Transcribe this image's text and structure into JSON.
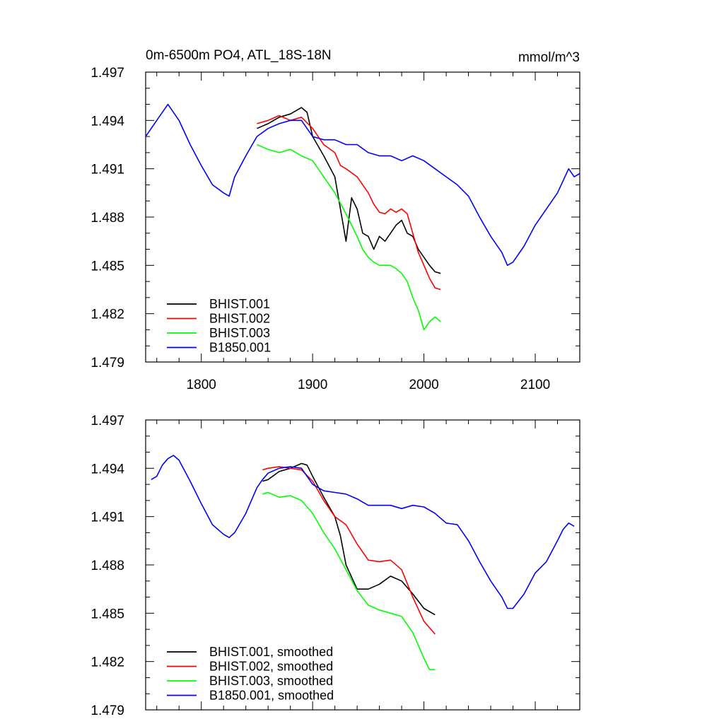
{
  "figure": {
    "title": "0m-6500m PO4, ATL_18S-18N",
    "units": "mmol/m^3"
  },
  "chart_data": [
    {
      "type": "line",
      "title": "0m-6500m PO4, ATL_18S-18N",
      "units": "mmol/m^3",
      "xlim": [
        1750,
        2140
      ],
      "ylim": [
        1.479,
        1.497
      ],
      "xticks": [
        1800,
        1900,
        2000,
        2100
      ],
      "xtick_labels": [
        "1800",
        "1900",
        "2000",
        "2100"
      ],
      "yticks": [
        1.479,
        1.482,
        1.485,
        1.488,
        1.491,
        1.494,
        1.497
      ],
      "ytick_labels": [
        "1.479",
        "1.482",
        "1.485",
        "1.488",
        "1.491",
        "1.494",
        "1.497"
      ],
      "grid": false,
      "legend_placement": "bottom-left",
      "series": [
        {
          "name": "BHIST.001",
          "color": "#000000",
          "x": [
            1850,
            1860,
            1870,
            1880,
            1890,
            1895,
            1900,
            1910,
            1920,
            1925,
            1930,
            1935,
            1940,
            1945,
            1950,
            1955,
            1960,
            1965,
            1970,
            1975,
            1980,
            1985,
            1990,
            1995,
            2000,
            2005,
            2010,
            2015
          ],
          "y": [
            1.4935,
            1.4938,
            1.4942,
            1.4944,
            1.4948,
            1.4945,
            1.493,
            1.4918,
            1.4905,
            1.4885,
            1.4865,
            1.4892,
            1.4885,
            1.487,
            1.4868,
            1.486,
            1.4868,
            1.4865,
            1.487,
            1.4875,
            1.4878,
            1.487,
            1.4868,
            1.486,
            1.4855,
            1.485,
            1.4846,
            1.4845
          ]
        },
        {
          "name": "BHIST.002",
          "color": "#ff0000",
          "x": [
            1850,
            1860,
            1870,
            1880,
            1890,
            1900,
            1910,
            1920,
            1925,
            1930,
            1940,
            1950,
            1955,
            1960,
            1965,
            1970,
            1975,
            1980,
            1985,
            1990,
            1995,
            2000,
            2005,
            2010,
            2015
          ],
          "y": [
            1.4938,
            1.494,
            1.4943,
            1.494,
            1.4942,
            1.4935,
            1.4925,
            1.492,
            1.4912,
            1.491,
            1.4905,
            1.4895,
            1.4888,
            1.4883,
            1.4882,
            1.4885,
            1.4883,
            1.4885,
            1.4882,
            1.487,
            1.4858,
            1.485,
            1.4842,
            1.4836,
            1.4835
          ]
        },
        {
          "name": "BHIST.003",
          "color": "#00ff00",
          "x": [
            1850,
            1860,
            1870,
            1880,
            1890,
            1900,
            1910,
            1920,
            1930,
            1935,
            1940,
            1945,
            1950,
            1955,
            1960,
            1965,
            1970,
            1975,
            1980,
            1985,
            1990,
            1995,
            2000,
            2005,
            2010,
            2015
          ],
          "y": [
            1.4925,
            1.4922,
            1.492,
            1.4922,
            1.4918,
            1.4915,
            1.4905,
            1.4895,
            1.4882,
            1.4875,
            1.4868,
            1.486,
            1.4855,
            1.4852,
            1.485,
            1.485,
            1.485,
            1.4848,
            1.4845,
            1.484,
            1.483,
            1.4822,
            1.481,
            1.4815,
            1.4818,
            1.4815
          ]
        },
        {
          "name": "B1850.001",
          "color": "#0000ff",
          "x": [
            1750,
            1760,
            1770,
            1780,
            1790,
            1800,
            1810,
            1820,
            1825,
            1830,
            1840,
            1850,
            1860,
            1870,
            1880,
            1890,
            1900,
            1910,
            1920,
            1930,
            1940,
            1950,
            1960,
            1970,
            1980,
            1990,
            2000,
            2010,
            2020,
            2030,
            2040,
            2050,
            2060,
            2070,
            2075,
            2080,
            2090,
            2100,
            2110,
            2120,
            2130,
            2135,
            2140
          ],
          "y": [
            1.493,
            1.494,
            1.495,
            1.494,
            1.4925,
            1.4912,
            1.49,
            1.4895,
            1.4893,
            1.4905,
            1.4918,
            1.493,
            1.4935,
            1.4938,
            1.494,
            1.494,
            1.493,
            1.4928,
            1.4928,
            1.4925,
            1.4925,
            1.492,
            1.4918,
            1.4918,
            1.4915,
            1.4918,
            1.4915,
            1.491,
            1.4905,
            1.49,
            1.4893,
            1.488,
            1.4868,
            1.4858,
            1.485,
            1.4852,
            1.4862,
            1.4875,
            1.4885,
            1.4895,
            1.491,
            1.4905,
            1.4907
          ]
        }
      ]
    },
    {
      "type": "line",
      "xlim": [
        1750,
        2140
      ],
      "ylim": [
        1.479,
        1.497
      ],
      "xticks": [
        1800,
        1900,
        2000,
        2100
      ],
      "yticks": [
        1.479,
        1.482,
        1.485,
        1.488,
        1.491,
        1.494,
        1.497
      ],
      "ytick_labels": [
        "1.479",
        "1.482",
        "1.485",
        "1.488",
        "1.491",
        "1.494",
        "1.497"
      ],
      "grid": false,
      "legend_placement": "bottom-left",
      "series": [
        {
          "name": "BHIST.001, smoothed",
          "color": "#000000",
          "x": [
            1855,
            1860,
            1870,
            1880,
            1890,
            1895,
            1900,
            1910,
            1920,
            1925,
            1930,
            1940,
            1950,
            1960,
            1970,
            1980,
            1990,
            2000,
            2010
          ],
          "y": [
            1.4932,
            1.4933,
            1.4938,
            1.494,
            1.4943,
            1.4942,
            1.4935,
            1.4922,
            1.491,
            1.4898,
            1.488,
            1.4865,
            1.4865,
            1.4868,
            1.4873,
            1.487,
            1.4862,
            1.4853,
            1.4849
          ]
        },
        {
          "name": "BHIST.002, smoothed",
          "color": "#ff0000",
          "x": [
            1855,
            1860,
            1870,
            1880,
            1890,
            1900,
            1910,
            1920,
            1930,
            1940,
            1950,
            1960,
            1970,
            1980,
            1990,
            2000,
            2010
          ],
          "y": [
            1.4939,
            1.494,
            1.4941,
            1.494,
            1.4939,
            1.4932,
            1.492,
            1.491,
            1.4905,
            1.4893,
            1.4883,
            1.4882,
            1.4883,
            1.4877,
            1.486,
            1.4845,
            1.4837
          ]
        },
        {
          "name": "BHIST.003, smoothed",
          "color": "#00ff00",
          "x": [
            1855,
            1860,
            1870,
            1880,
            1890,
            1900,
            1910,
            1920,
            1930,
            1940,
            1950,
            1960,
            1970,
            1980,
            1990,
            2000,
            2005,
            2010
          ],
          "y": [
            1.4924,
            1.4925,
            1.4922,
            1.4923,
            1.492,
            1.4912,
            1.49,
            1.489,
            1.4877,
            1.4864,
            1.4855,
            1.4852,
            1.485,
            1.4848,
            1.4838,
            1.4822,
            1.4815,
            1.4815
          ]
        },
        {
          "name": "B1850.001, smoothed",
          "color": "#0000ff",
          "x": [
            1755,
            1760,
            1765,
            1770,
            1775,
            1780,
            1790,
            1800,
            1810,
            1820,
            1825,
            1830,
            1840,
            1850,
            1855,
            1860,
            1870,
            1880,
            1890,
            1900,
            1910,
            1920,
            1930,
            1940,
            1950,
            1960,
            1970,
            1980,
            1990,
            2000,
            2010,
            2020,
            2030,
            2040,
            2050,
            2060,
            2070,
            2075,
            2080,
            2090,
            2100,
            2110,
            2120,
            2125,
            2130,
            2135
          ],
          "y": [
            1.4933,
            1.4935,
            1.4942,
            1.4946,
            1.4948,
            1.4945,
            1.4932,
            1.4918,
            1.4905,
            1.4899,
            1.4897,
            1.49,
            1.4912,
            1.4928,
            1.4933,
            1.4937,
            1.494,
            1.4941,
            1.494,
            1.493,
            1.4926,
            1.4925,
            1.4924,
            1.4921,
            1.4917,
            1.4917,
            1.4917,
            1.4915,
            1.4917,
            1.4916,
            1.4912,
            1.4906,
            1.4905,
            1.4895,
            1.4882,
            1.487,
            1.486,
            1.4853,
            1.4853,
            1.4862,
            1.4875,
            1.4882,
            1.4895,
            1.4902,
            1.4906,
            1.4904
          ]
        }
      ]
    }
  ]
}
